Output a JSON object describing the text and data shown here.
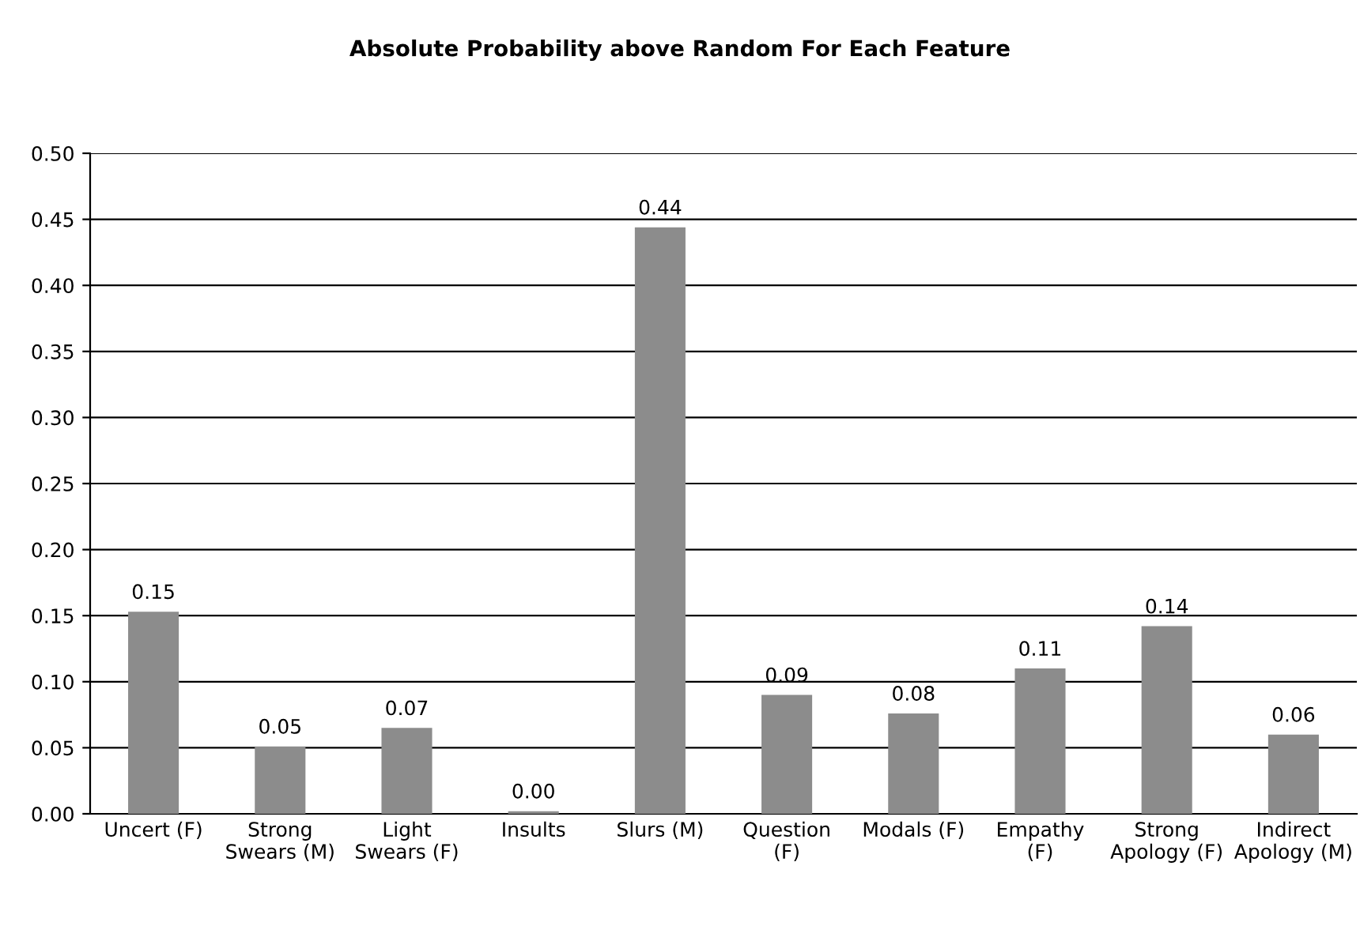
{
  "chart_data": {
    "type": "bar",
    "title": "Absolute Probability above Random For Each Feature",
    "categories": [
      "Uncert (F)",
      "Strong\nSwears (M)",
      "Light\nSwears (F)",
      "Insults",
      "Slurs (M)",
      "Question\n(F)",
      "Modals (F)",
      "Empathy\n(F)",
      "Strong\nApology (F)",
      "Indirect\nApology (M)"
    ],
    "values": [
      0.153,
      0.051,
      0.065,
      0.002,
      0.444,
      0.09,
      0.076,
      0.11,
      0.142,
      0.06
    ],
    "value_labels": [
      "0.15",
      "0.05",
      "0.07",
      "0.00",
      "0.44",
      "0.09",
      "0.08",
      "0.11",
      "0.14",
      "0.06"
    ],
    "color": "#8c8c8c",
    "ylim": [
      0,
      0.5
    ],
    "yticks": [
      {
        "value": 0,
        "label": "0.00"
      },
      {
        "value": 0.05,
        "label": "0.05"
      },
      {
        "value": 0.1,
        "label": "0.10"
      },
      {
        "value": 0.15,
        "label": "0.15"
      },
      {
        "value": 0.2,
        "label": "0.20"
      },
      {
        "value": 0.25,
        "label": "0.25"
      },
      {
        "value": 0.3,
        "label": "0.30"
      },
      {
        "value": 0.35,
        "label": "0.35"
      },
      {
        "value": 0.4,
        "label": "0.40"
      },
      {
        "value": 0.45,
        "label": "0.45"
      },
      {
        "value": 0.5,
        "label": "0.50"
      }
    ],
    "grid": "y"
  }
}
